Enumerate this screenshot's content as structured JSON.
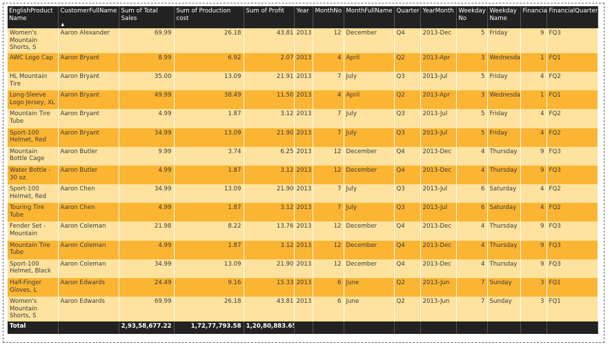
{
  "columns": [
    "EnglishProduct Name",
    "CustomerFullName",
    "Sum of Total Sales",
    "Sum of Production cost",
    "Sum of Profit",
    "Year",
    "MonthNo",
    "MonthFullName",
    "Quarter",
    "YearMonth",
    "Weekday No",
    "Weekday Name",
    "FinancialMonth",
    "FinancialQuarter"
  ],
  "sort_indicator": "▲",
  "rows": [
    {
      "product": "Women's Mountain Shorts, S",
      "customer": "Aaron Alexander",
      "sales": "69.99",
      "cost": "26.18",
      "profit": "43.81",
      "year": "2013",
      "month_no": "12",
      "month": "December",
      "quarter": "Q4",
      "year_month": "2013-Dec",
      "weekday_no": "5",
      "weekday": "Friday",
      "fin_month": "9",
      "fin_quarter": "FQ3"
    },
    {
      "product": "AWC Logo Cap",
      "customer": "Aaron Bryant",
      "sales": "8.99",
      "cost": "6.92",
      "profit": "2.07",
      "year": "2013",
      "month_no": "4",
      "month": "April",
      "quarter": "Q2",
      "year_month": "2013-Apr",
      "weekday_no": "3",
      "weekday": "Wednesday",
      "fin_month": "1",
      "fin_quarter": "FQ1"
    },
    {
      "product": "HL Mountain Tire",
      "customer": "Aaron Bryant",
      "sales": "35.00",
      "cost": "13.09",
      "profit": "21.91",
      "year": "2013",
      "month_no": "7",
      "month": "July",
      "quarter": "Q3",
      "year_month": "2013-Jul",
      "weekday_no": "5",
      "weekday": "Friday",
      "fin_month": "4",
      "fin_quarter": "FQ2"
    },
    {
      "product": "Long-Sleeve Logo Jersey, XL",
      "customer": "Aaron Bryant",
      "sales": "49.99",
      "cost": "38.49",
      "profit": "11.50",
      "year": "2013",
      "month_no": "4",
      "month": "April",
      "quarter": "Q2",
      "year_month": "2013-Apr",
      "weekday_no": "3",
      "weekday": "Wednesday",
      "fin_month": "1",
      "fin_quarter": "FQ1"
    },
    {
      "product": "Mountain Tire Tube",
      "customer": "Aaron Bryant",
      "sales": "4.99",
      "cost": "1.87",
      "profit": "3.12",
      "year": "2013",
      "month_no": "7",
      "month": "July",
      "quarter": "Q3",
      "year_month": "2013-Jul",
      "weekday_no": "5",
      "weekday": "Friday",
      "fin_month": "4",
      "fin_quarter": "FQ2"
    },
    {
      "product": "Sport-100 Helmet, Red",
      "customer": "Aaron Bryant",
      "sales": "34.99",
      "cost": "13.09",
      "profit": "21.90",
      "year": "2013",
      "month_no": "7",
      "month": "July",
      "quarter": "Q3",
      "year_month": "2013-Jul",
      "weekday_no": "5",
      "weekday": "Friday",
      "fin_month": "4",
      "fin_quarter": "FQ2"
    },
    {
      "product": "Mountain Bottle Cage",
      "customer": "Aaron Butler",
      "sales": "9.99",
      "cost": "3.74",
      "profit": "6.25",
      "year": "2013",
      "month_no": "12",
      "month": "December",
      "quarter": "Q4",
      "year_month": "2013-Dec",
      "weekday_no": "4",
      "weekday": "Thursday",
      "fin_month": "9",
      "fin_quarter": "FQ3"
    },
    {
      "product": "Water Bottle - 30 oz.",
      "customer": "Aaron Butler",
      "sales": "4.99",
      "cost": "1.87",
      "profit": "3.12",
      "year": "2013",
      "month_no": "12",
      "month": "December",
      "quarter": "Q4",
      "year_month": "2013-Dec",
      "weekday_no": "4",
      "weekday": "Thursday",
      "fin_month": "9",
      "fin_quarter": "FQ3"
    },
    {
      "product": "Sport-100 Helmet, Red",
      "customer": "Aaron Chen",
      "sales": "34.99",
      "cost": "13.09",
      "profit": "21.90",
      "year": "2013",
      "month_no": "7",
      "month": "July",
      "quarter": "Q3",
      "year_month": "2013-Jul",
      "weekday_no": "6",
      "weekday": "Saturday",
      "fin_month": "4",
      "fin_quarter": "FQ2"
    },
    {
      "product": "Touring Tire Tube",
      "customer": "Aaron Chen",
      "sales": "4.99",
      "cost": "1.87",
      "profit": "3.12",
      "year": "2013",
      "month_no": "7",
      "month": "July",
      "quarter": "Q3",
      "year_month": "2013-Jul",
      "weekday_no": "6",
      "weekday": "Saturday",
      "fin_month": "4",
      "fin_quarter": "FQ2"
    },
    {
      "product": "Fender Set - Mountain",
      "customer": "Aaron Coleman",
      "sales": "21.98",
      "cost": "8.22",
      "profit": "13.76",
      "year": "2013",
      "month_no": "12",
      "month": "December",
      "quarter": "Q4",
      "year_month": "2013-Dec",
      "weekday_no": "4",
      "weekday": "Thursday",
      "fin_month": "9",
      "fin_quarter": "FQ3"
    },
    {
      "product": "Mountain Tire Tube",
      "customer": "Aaron Coleman",
      "sales": "4.99",
      "cost": "1.87",
      "profit": "3.12",
      "year": "2013",
      "month_no": "12",
      "month": "December",
      "quarter": "Q4",
      "year_month": "2013-Dec",
      "weekday_no": "4",
      "weekday": "Thursday",
      "fin_month": "9",
      "fin_quarter": "FQ3"
    },
    {
      "product": "Sport-100 Helmet, Black",
      "customer": "Aaron Coleman",
      "sales": "34.99",
      "cost": "13.09",
      "profit": "21.90",
      "year": "2013",
      "month_no": "12",
      "month": "December",
      "quarter": "Q4",
      "year_month": "2013-Dec",
      "weekday_no": "4",
      "weekday": "Thursday",
      "fin_month": "9",
      "fin_quarter": "FQ3"
    },
    {
      "product": "Half-Finger Gloves, L",
      "customer": "Aaron Edwards",
      "sales": "24.49",
      "cost": "9.16",
      "profit": "15.33",
      "year": "2013",
      "month_no": "6",
      "month": "June",
      "quarter": "Q2",
      "year_month": "2013-Jun",
      "weekday_no": "7",
      "weekday": "Sunday",
      "fin_month": "3",
      "fin_quarter": "FQ1"
    },
    {
      "product": "Women's Mountain Shorts, S",
      "customer": "Aaron Edwards",
      "sales": "69.99",
      "cost": "26.18",
      "profit": "43.81",
      "year": "2013",
      "month_no": "6",
      "month": "June",
      "quarter": "Q2",
      "year_month": "2013-Jun",
      "weekday_no": "7",
      "weekday": "Sunday",
      "fin_month": "3",
      "fin_quarter": "FQ1"
    }
  ],
  "total": {
    "label": "Total",
    "sales": "2,93,58,677.22",
    "cost": "1,72,77,793.58",
    "profit": "1,20,80,883.65"
  },
  "colors": {
    "header_bg": "#222222",
    "row_light": "#fee29d",
    "row_dark": "#fbb533"
  }
}
